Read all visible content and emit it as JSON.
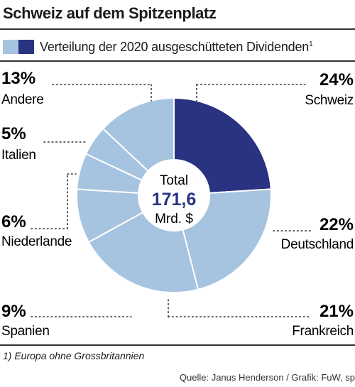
{
  "title": "Schweiz auf dem Spitzenplatz",
  "legend": {
    "label": "Verteilung der 2020 ausgeschütteten Dividenden",
    "footnote_mark": "1"
  },
  "colors": {
    "highlight": "#2a3382",
    "base": "#a6c3e0",
    "dots": "#333333"
  },
  "chart_data": {
    "type": "pie",
    "donut": true,
    "categories": [
      "Schweiz",
      "Deutschland",
      "Frankreich",
      "Spanien",
      "Niederlande",
      "Italien",
      "Andere"
    ],
    "values": [
      24,
      22,
      21,
      9,
      6,
      5,
      13
    ],
    "value_labels": [
      "24%",
      "22%",
      "21%",
      "9%",
      "6%",
      "5%",
      "13%"
    ],
    "highlight": "Schweiz",
    "center": {
      "line1": "Total",
      "line2": "171,6",
      "line3": "Mrd. $"
    }
  },
  "footnote": "1) Europa ohne Grossbritannien",
  "source": "Quelle: Janus Henderson / Grafik: FuW, sp"
}
